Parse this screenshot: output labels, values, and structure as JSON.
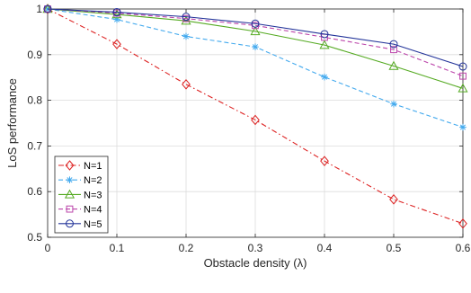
{
  "chart_data": {
    "type": "line",
    "x": [
      0,
      0.1,
      0.2,
      0.3,
      0.4,
      0.5,
      0.6
    ],
    "series": [
      {
        "name": "N=1",
        "values": [
          1.0,
          0.923,
          0.835,
          0.757,
          0.667,
          0.583,
          0.53
        ],
        "color": "#dd2222",
        "dash": "dashdot",
        "marker": "diamond"
      },
      {
        "name": "N=2",
        "values": [
          1.0,
          0.977,
          0.94,
          0.917,
          0.851,
          0.792,
          0.741
        ],
        "color": "#44aaee",
        "dash": "dashed",
        "marker": "asterisk"
      },
      {
        "name": "N=3",
        "values": [
          1.0,
          0.988,
          0.974,
          0.951,
          0.921,
          0.875,
          0.826
        ],
        "color": "#55aa22",
        "dash": "solid",
        "marker": "triangle"
      },
      {
        "name": "N=4",
        "values": [
          1.0,
          0.991,
          0.979,
          0.964,
          0.938,
          0.911,
          0.853
        ],
        "color": "#bb44aa",
        "dash": "dashed",
        "marker": "square"
      },
      {
        "name": "N=5",
        "values": [
          1.0,
          0.993,
          0.983,
          0.968,
          0.945,
          0.923,
          0.874
        ],
        "color": "#223399",
        "dash": "solid",
        "marker": "circle"
      }
    ],
    "xlabel": "Obstacle density (λ)",
    "ylabel": "LoS performance",
    "xlim": [
      0,
      0.6
    ],
    "ylim": [
      0.5,
      1.0
    ],
    "xticks": [
      "0",
      "0.1",
      "0.2",
      "0.3",
      "0.4",
      "0.5",
      "0.6"
    ],
    "yticks": [
      "0.5",
      "0.6",
      "0.7",
      "0.8",
      "0.9",
      "1"
    ],
    "grid": true,
    "legend_position": "bottom-left"
  }
}
